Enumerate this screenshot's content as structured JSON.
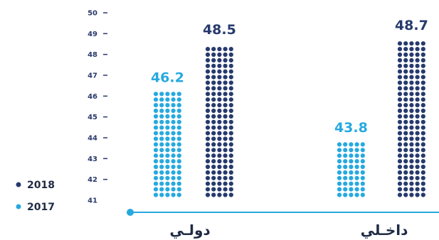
{
  "colors": {
    "series_2017": "#27a9df",
    "series_2018": "#273a6e",
    "tick": "#2a3a6b",
    "axis_line": "#27a9df"
  },
  "chart_data": {
    "type": "bar",
    "categories": [
      "دولـي",
      "داخـلي"
    ],
    "series": [
      {
        "name": "2017",
        "values": [
          46.2,
          43.8
        ]
      },
      {
        "name": "2018",
        "values": [
          48.5,
          48.7
        ]
      }
    ],
    "yticks": [
      41,
      42,
      43,
      44,
      45,
      46,
      47,
      48,
      49,
      50
    ],
    "ylim": [
      41,
      50
    ],
    "grid": false,
    "legend_position": "bottom-left"
  },
  "legend": {
    "items": [
      {
        "label": "2018"
      },
      {
        "label": "2017"
      }
    ]
  }
}
